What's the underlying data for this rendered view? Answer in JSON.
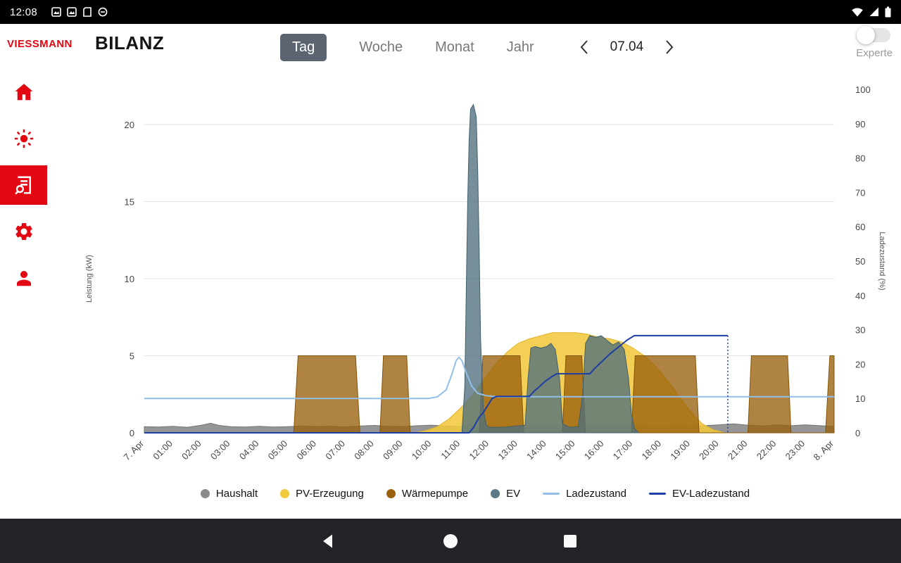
{
  "status_bar": {
    "time": "12:08",
    "left_icons": [
      "screenshot-icon",
      "screenshot-icon",
      "sd-card-icon",
      "dnd-icon"
    ],
    "right_icons": [
      "wifi-icon",
      "signal-icon",
      "battery-icon"
    ]
  },
  "header": {
    "logo_text": "VIESSMANN",
    "title": "BILANZ",
    "tabs": [
      {
        "label": "Tag",
        "selected": true
      },
      {
        "label": "Woche",
        "selected": false
      },
      {
        "label": "Monat",
        "selected": false
      },
      {
        "label": "Jahr",
        "selected": false
      }
    ],
    "date_nav": {
      "current": "07.04"
    },
    "expert_toggle": {
      "label": "Experte",
      "on": false
    }
  },
  "sidebar": {
    "items": [
      {
        "name": "home",
        "selected": false
      },
      {
        "name": "energy",
        "selected": false
      },
      {
        "name": "balance-report",
        "selected": true
      },
      {
        "name": "settings",
        "selected": false
      },
      {
        "name": "profile",
        "selected": false
      }
    ]
  },
  "colors": {
    "brand_red": "#e30613",
    "tab_active_bg": "#5b6470"
  },
  "chart_data": {
    "type": "area",
    "x_axis": {
      "range": [
        0,
        24
      ],
      "labels": [
        "7. Apr",
        "01:00",
        "02:00",
        "03:00",
        "04:00",
        "05:00",
        "06:00",
        "07:00",
        "08:00",
        "09:00",
        "10:00",
        "11:00",
        "12:00",
        "13:00",
        "14:00",
        "15:00",
        "16:00",
        "17:00",
        "18:00",
        "19:00",
        "20:00",
        "21:00",
        "22:00",
        "23:00",
        "8. Apr"
      ]
    },
    "y_left": {
      "label": "Leistung (kW)",
      "ticks": [
        0,
        5,
        10,
        15,
        20
      ],
      "range": [
        0,
        20
      ]
    },
    "y_right": {
      "label": "Ladezustand (%)",
      "ticks": [
        0,
        10,
        20,
        30,
        40,
        50,
        60,
        70,
        80,
        90,
        100
      ],
      "range": [
        0,
        100
      ]
    },
    "grid": true,
    "legend_position": "bottom",
    "series": [
      {
        "name": "Haushalt",
        "type": "area",
        "axis": "left",
        "color": "#8b8b8b",
        "stroke": "#737373",
        "fill_opacity": 0.9,
        "points": [
          [
            0,
            0.4
          ],
          [
            0.5,
            0.38
          ],
          [
            1,
            0.42
          ],
          [
            1.5,
            0.36
          ],
          [
            2,
            0.5
          ],
          [
            2.3,
            0.62
          ],
          [
            2.6,
            0.48
          ],
          [
            3,
            0.4
          ],
          [
            3.5,
            0.38
          ],
          [
            4,
            0.42
          ],
          [
            4.5,
            0.38
          ],
          [
            5,
            0.4
          ],
          [
            5.5,
            0.44
          ],
          [
            6,
            0.4
          ],
          [
            6.5,
            0.42
          ],
          [
            7,
            0.38
          ],
          [
            7.5,
            0.44
          ],
          [
            8,
            0.48
          ],
          [
            8.5,
            0.42
          ],
          [
            9,
            0.4
          ],
          [
            9.5,
            0.46
          ],
          [
            10,
            0.5
          ],
          [
            10.5,
            0.44
          ],
          [
            11,
            0.42
          ],
          [
            11.5,
            0.46
          ],
          [
            12,
            0.5
          ],
          [
            12.5,
            0.44
          ],
          [
            13,
            0.5
          ],
          [
            13.5,
            0.46
          ],
          [
            14,
            0.52
          ],
          [
            14.5,
            0.46
          ],
          [
            15,
            0.5
          ],
          [
            15.5,
            0.46
          ],
          [
            16,
            0.52
          ],
          [
            16.5,
            0.46
          ],
          [
            17,
            0.5
          ],
          [
            17.5,
            0.44
          ],
          [
            18,
            0.4
          ],
          [
            18.5,
            0.46
          ],
          [
            19,
            0.42
          ],
          [
            19.5,
            0.46
          ],
          [
            20,
            0.52
          ],
          [
            20.5,
            0.58
          ],
          [
            21,
            0.5
          ],
          [
            21.5,
            0.44
          ],
          [
            22,
            0.52
          ],
          [
            22.5,
            0.46
          ],
          [
            23,
            0.52
          ],
          [
            23.5,
            0.46
          ],
          [
            24,
            0.42
          ]
        ]
      },
      {
        "name": "PV-Erzeugung",
        "type": "area",
        "axis": "left",
        "color": "#f2c83d",
        "stroke": "#e0b428",
        "fill_opacity": 0.88,
        "points": [
          [
            9.4,
            0
          ],
          [
            9.8,
            0.15
          ],
          [
            10.2,
            0.4
          ],
          [
            10.6,
            0.9
          ],
          [
            11,
            1.6
          ],
          [
            11.4,
            2.4
          ],
          [
            11.8,
            3.4
          ],
          [
            12.2,
            4.4
          ],
          [
            12.6,
            5.2
          ],
          [
            13,
            5.8
          ],
          [
            13.4,
            6.1
          ],
          [
            13.8,
            6.3
          ],
          [
            14.2,
            6.5
          ],
          [
            14.6,
            6.5
          ],
          [
            15,
            6.5
          ],
          [
            15.4,
            6.4
          ],
          [
            15.8,
            6.2
          ],
          [
            16.2,
            6.1
          ],
          [
            16.6,
            5.9
          ],
          [
            17,
            5.5
          ],
          [
            17.4,
            5.0
          ],
          [
            17.8,
            4.3
          ],
          [
            18.2,
            3.4
          ],
          [
            18.6,
            2.4
          ],
          [
            19,
            1.4
          ],
          [
            19.4,
            0.6
          ],
          [
            19.8,
            0.2
          ],
          [
            20.2,
            0
          ]
        ]
      },
      {
        "name": "Wärmepumpe",
        "type": "area",
        "axis": "left",
        "color": "#99600d",
        "stroke": "#875305",
        "fill_opacity": 0.78,
        "points": [
          [
            5.2,
            0
          ],
          [
            5.35,
            5
          ],
          [
            7.35,
            5
          ],
          [
            7.5,
            0
          ],
          [
            8.2,
            0
          ],
          [
            8.32,
            5
          ],
          [
            9.13,
            5
          ],
          [
            9.25,
            0
          ],
          [
            11.65,
            0
          ],
          [
            11.78,
            5
          ],
          [
            13.07,
            5
          ],
          [
            13.2,
            0
          ],
          [
            14.55,
            0
          ],
          [
            14.67,
            5
          ],
          [
            15.22,
            5
          ],
          [
            15.35,
            0
          ],
          [
            16.95,
            0
          ],
          [
            17.08,
            5
          ],
          [
            19.17,
            5
          ],
          [
            19.3,
            0
          ],
          [
            21.0,
            0
          ],
          [
            21.12,
            5
          ],
          [
            22.38,
            5
          ],
          [
            22.5,
            0
          ],
          [
            23.7,
            0
          ],
          [
            23.85,
            5
          ],
          [
            24,
            5
          ]
        ]
      },
      {
        "name": "EV",
        "type": "area",
        "axis": "left",
        "color": "#4f6f7e",
        "stroke": "#40606e",
        "fill_opacity": 0.78,
        "legend_color": "#5a7a88",
        "points": [
          [
            11.05,
            0
          ],
          [
            11.15,
            3
          ],
          [
            11.2,
            9
          ],
          [
            11.25,
            15
          ],
          [
            11.3,
            19
          ],
          [
            11.35,
            21.0
          ],
          [
            11.45,
            21.3
          ],
          [
            11.55,
            20.5
          ],
          [
            11.6,
            17
          ],
          [
            11.65,
            12
          ],
          [
            11.7,
            6
          ],
          [
            11.8,
            1.5
          ],
          [
            11.9,
            0.5
          ],
          [
            12,
            0.35
          ],
          [
            12.5,
            0.35
          ],
          [
            13,
            0.45
          ],
          [
            13.25,
            0.5
          ],
          [
            13.35,
            3.5
          ],
          [
            13.45,
            5.5
          ],
          [
            13.6,
            5.6
          ],
          [
            13.8,
            5.5
          ],
          [
            14,
            5.6
          ],
          [
            14.15,
            5.8
          ],
          [
            14.3,
            5.4
          ],
          [
            14.45,
            3.5
          ],
          [
            14.55,
            0.6
          ],
          [
            14.8,
            0.35
          ],
          [
            15.1,
            0.4
          ],
          [
            15.25,
            2.5
          ],
          [
            15.35,
            5.8
          ],
          [
            15.5,
            6.3
          ],
          [
            15.7,
            6.2
          ],
          [
            15.9,
            6.3
          ],
          [
            16.1,
            6.0
          ],
          [
            16.3,
            5.7
          ],
          [
            16.5,
            5.9
          ],
          [
            16.7,
            5.4
          ],
          [
            16.85,
            3.5
          ],
          [
            16.95,
            1.2
          ],
          [
            17.05,
            0.3
          ],
          [
            17.2,
            0
          ]
        ]
      },
      {
        "name": "Ladezustand",
        "type": "line",
        "axis": "right",
        "color": "#92bfe9",
        "points": [
          [
            0,
            10
          ],
          [
            9.9,
            10
          ],
          [
            10.2,
            10.5
          ],
          [
            10.5,
            12.5
          ],
          [
            10.7,
            17
          ],
          [
            10.85,
            21
          ],
          [
            10.95,
            22
          ],
          [
            11.05,
            21
          ],
          [
            11.2,
            17.5
          ],
          [
            11.4,
            13.5
          ],
          [
            11.6,
            11.5
          ],
          [
            11.9,
            10.8
          ],
          [
            12.3,
            10.5
          ],
          [
            24,
            10.5
          ]
        ]
      },
      {
        "name": "EV-Ladezustand",
        "type": "line",
        "axis": "right",
        "color": "#1d3ea3",
        "points": [
          [
            0,
            0
          ],
          [
            11.3,
            0
          ],
          [
            11.45,
            1.5
          ],
          [
            11.55,
            3
          ],
          [
            11.65,
            4.5
          ],
          [
            11.8,
            6
          ],
          [
            11.95,
            8
          ],
          [
            12.1,
            10
          ],
          [
            12.25,
            10.6
          ],
          [
            13.4,
            10.6
          ],
          [
            13.55,
            12
          ],
          [
            13.75,
            13.5
          ],
          [
            13.95,
            15
          ],
          [
            14.15,
            16.2
          ],
          [
            14.35,
            17.2
          ],
          [
            15.5,
            17.2
          ],
          [
            15.7,
            19
          ],
          [
            15.95,
            21
          ],
          [
            16.2,
            23
          ],
          [
            16.5,
            25
          ],
          [
            16.8,
            27
          ],
          [
            17.05,
            28.3
          ],
          [
            20.3,
            28.3
          ]
        ],
        "dashed_drop": [
          [
            20.3,
            28.3
          ],
          [
            20.3,
            0
          ]
        ]
      }
    ]
  },
  "nav_bar": {
    "icons": [
      "back",
      "home",
      "recents"
    ]
  }
}
